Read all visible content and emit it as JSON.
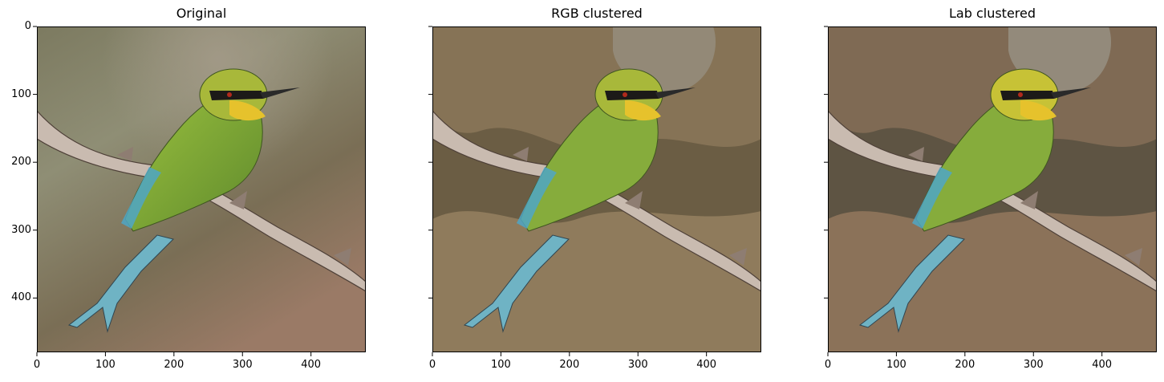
{
  "panels": [
    {
      "title": "Original",
      "variant": "original"
    },
    {
      "title": "RGB clustered",
      "variant": "rgb"
    },
    {
      "title": "Lab clustered",
      "variant": "lab"
    }
  ],
  "axes": {
    "x_ticks": [
      "0",
      "100",
      "200",
      "300",
      "400"
    ],
    "y_ticks": [
      "0",
      "100",
      "200",
      "300",
      "400"
    ],
    "x_range": [
      0,
      480
    ],
    "y_range": [
      0,
      480
    ],
    "shared_y": true
  },
  "colors": {
    "original_bg": [
      "#8d8e76",
      "#6f6a4e",
      "#8f7462"
    ],
    "rgb_bg": [
      "#6b5d44",
      "#8f7b5c",
      "#938977"
    ],
    "lab_bg": [
      "#5e5443",
      "#8b7259",
      "#938a7b"
    ],
    "bird_green": "#86ac3c",
    "bird_blue": "#6fb3c4",
    "bird_throat": "#e6c22c",
    "branch": "#c9bbb0"
  }
}
